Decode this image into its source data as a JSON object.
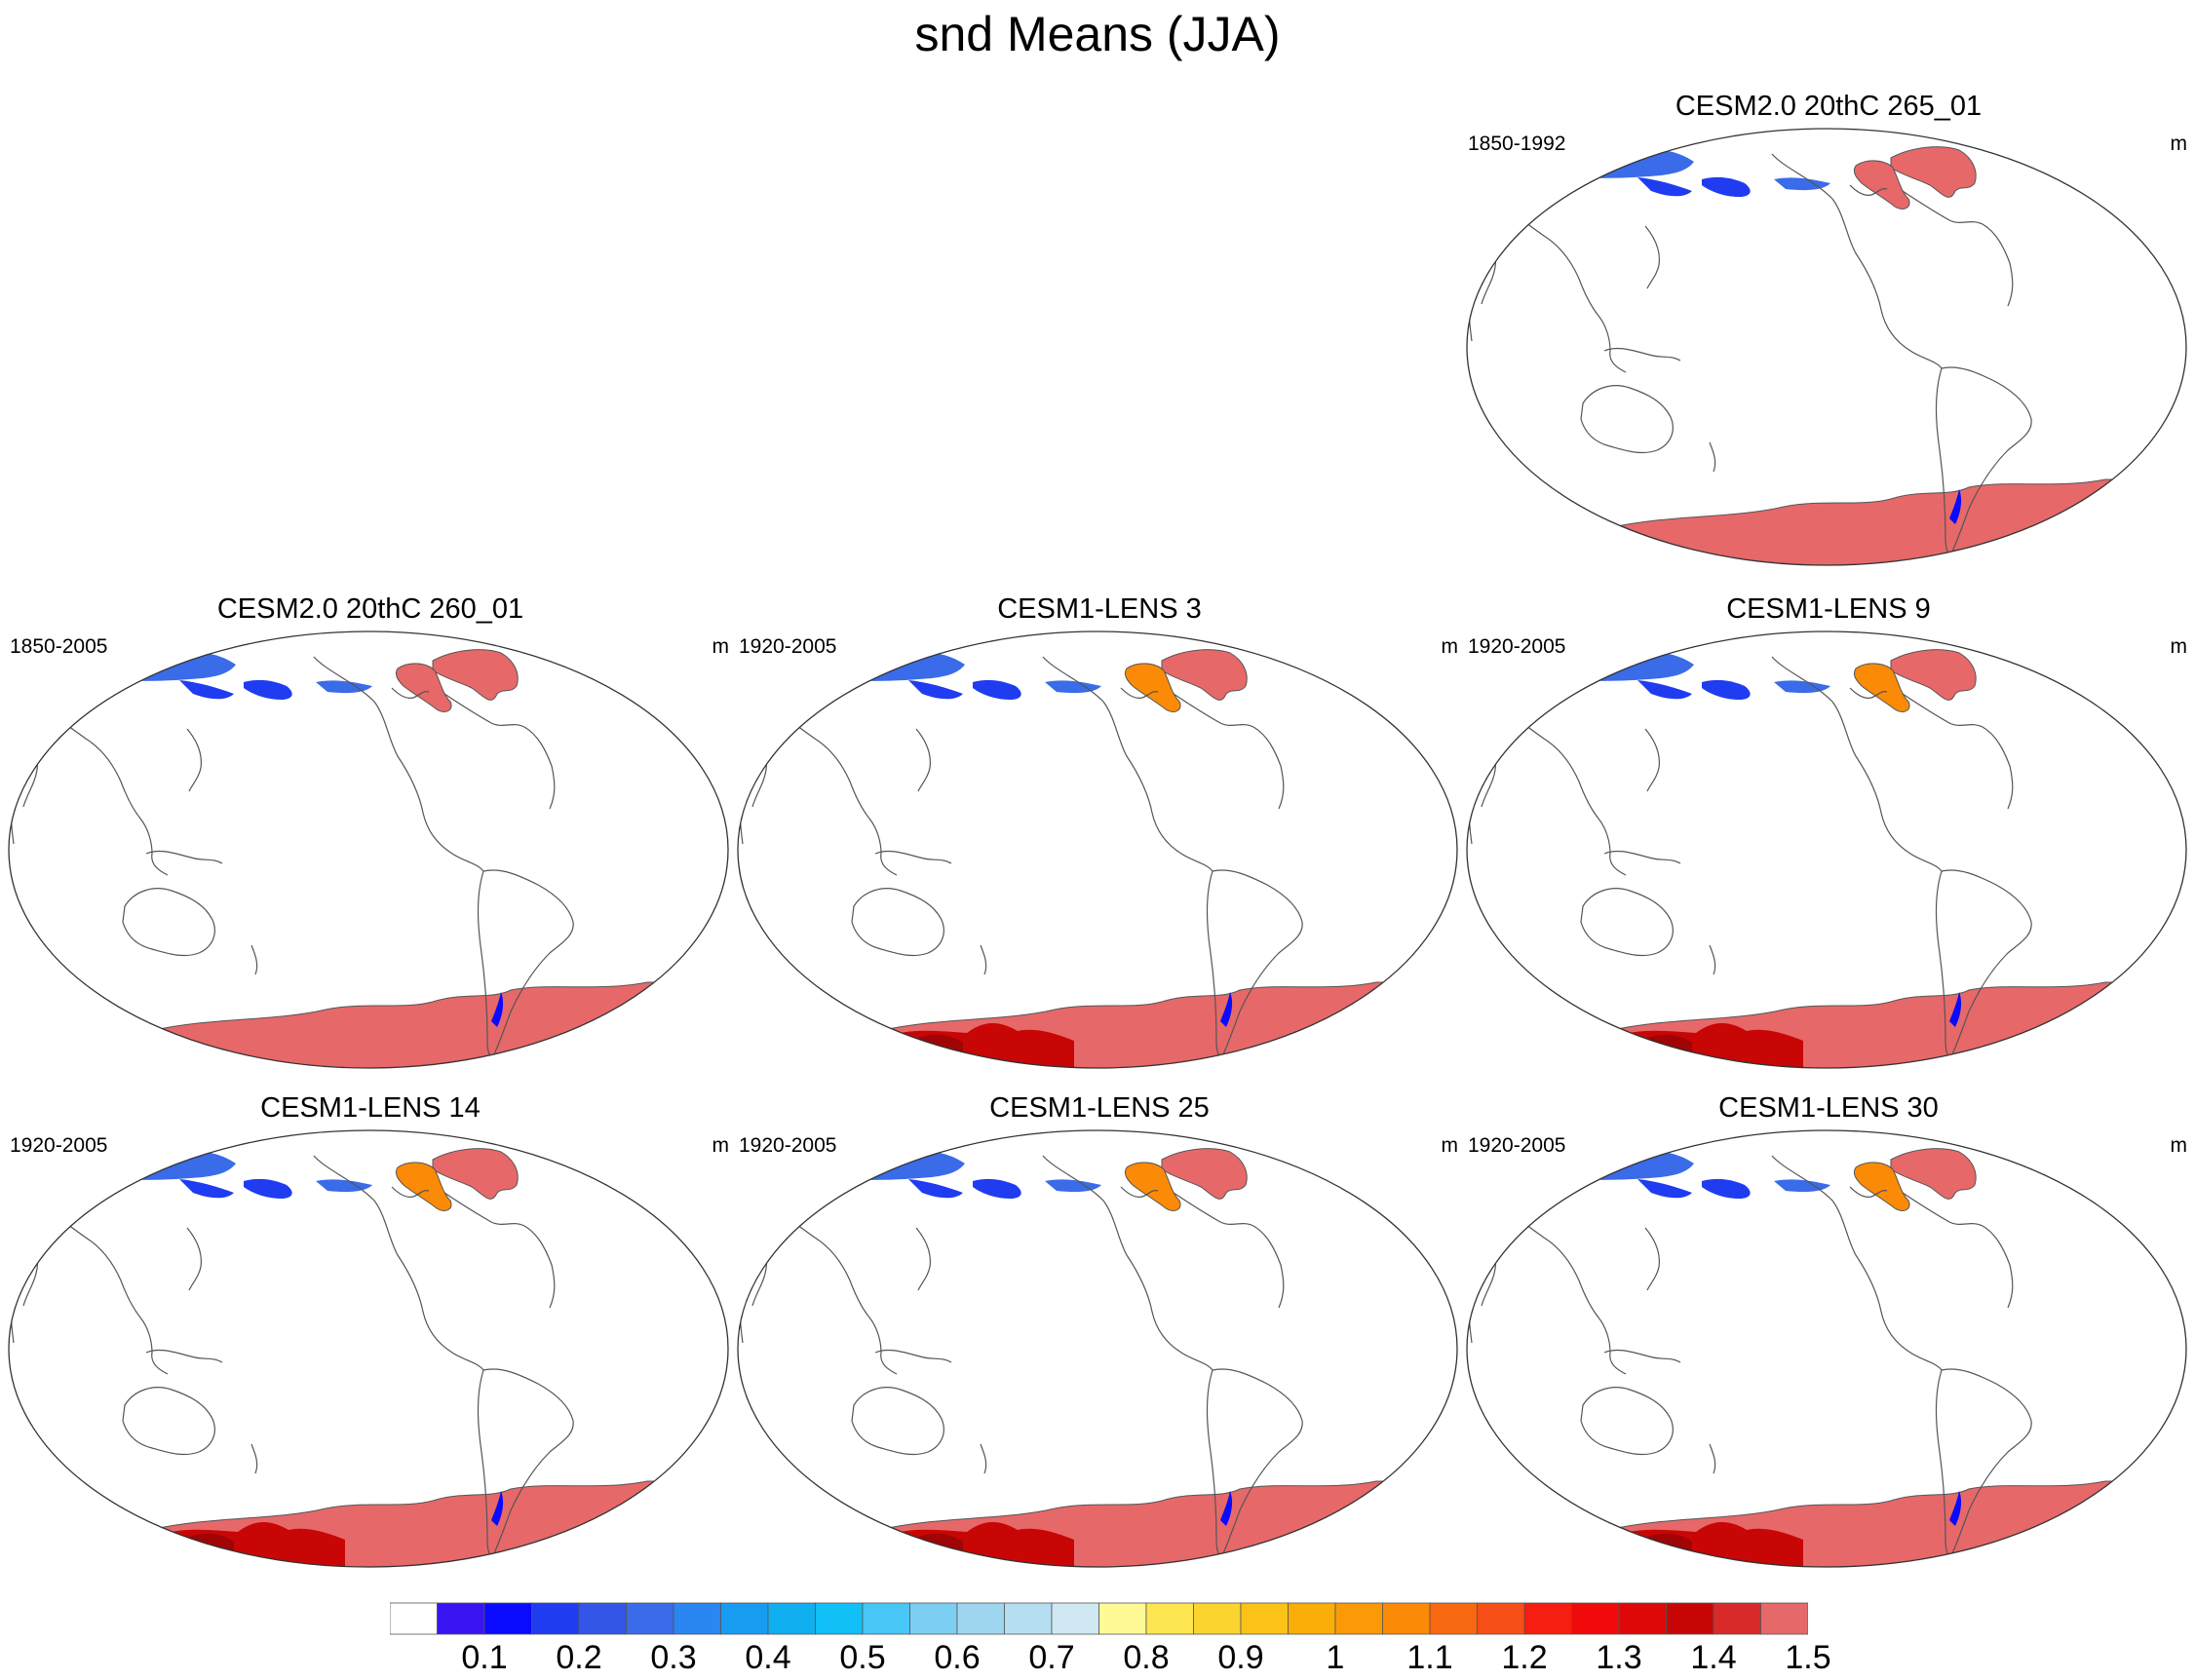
{
  "title": "snd Means (JJA)",
  "panels": [
    {
      "slot": "r0c2",
      "title": "CESM2.0 20thC 265_01",
      "years": "1850-1992",
      "units": "m",
      "variant": "cesm2"
    },
    {
      "slot": "r1c0",
      "title": "CESM2.0 20thC 260_01",
      "years": "1850-2005",
      "units": "m",
      "variant": "cesm2"
    },
    {
      "slot": "r1c1",
      "title": "CESM1-LENS 3",
      "years": "1920-2005",
      "units": "m",
      "variant": "lens"
    },
    {
      "slot": "r1c2",
      "title": "CESM1-LENS 9",
      "years": "1920-2005",
      "units": "m",
      "variant": "lens"
    },
    {
      "slot": "r2c0",
      "title": "CESM1-LENS 14",
      "years": "1920-2005",
      "units": "m",
      "variant": "lens"
    },
    {
      "slot": "r2c1",
      "title": "CESM1-LENS 25",
      "years": "1920-2005",
      "units": "m",
      "variant": "lens"
    },
    {
      "slot": "r2c2",
      "title": "CESM1-LENS 30",
      "years": "1920-2005",
      "units": "m",
      "variant": "lens"
    }
  ],
  "colorbar": {
    "colors": [
      "#ffffff",
      "#3a14f0",
      "#0a0aff",
      "#1f3cf0",
      "#3355e8",
      "#3a6be8",
      "#2a86f0",
      "#189cf2",
      "#10b0f0",
      "#10c0f6",
      "#48c6f6",
      "#7ccff2",
      "#9ed6f0",
      "#b5def0",
      "#cfe8f2",
      "#fffa96",
      "#fde650",
      "#fbd430",
      "#fcc218",
      "#fbae08",
      "#fb9a06",
      "#fb8a06",
      "#f86810",
      "#f74f18",
      "#f51e10",
      "#f00a0a",
      "#de0808",
      "#c80606",
      "#d92a2a",
      "#e76869"
    ],
    "labels": [
      "0.1",
      "0.2",
      "0.3",
      "0.4",
      "0.5",
      "0.6",
      "0.7",
      "0.8",
      "0.9",
      "1",
      "1.1",
      "1.2",
      "1.3",
      "1.4",
      "1.5"
    ]
  }
}
